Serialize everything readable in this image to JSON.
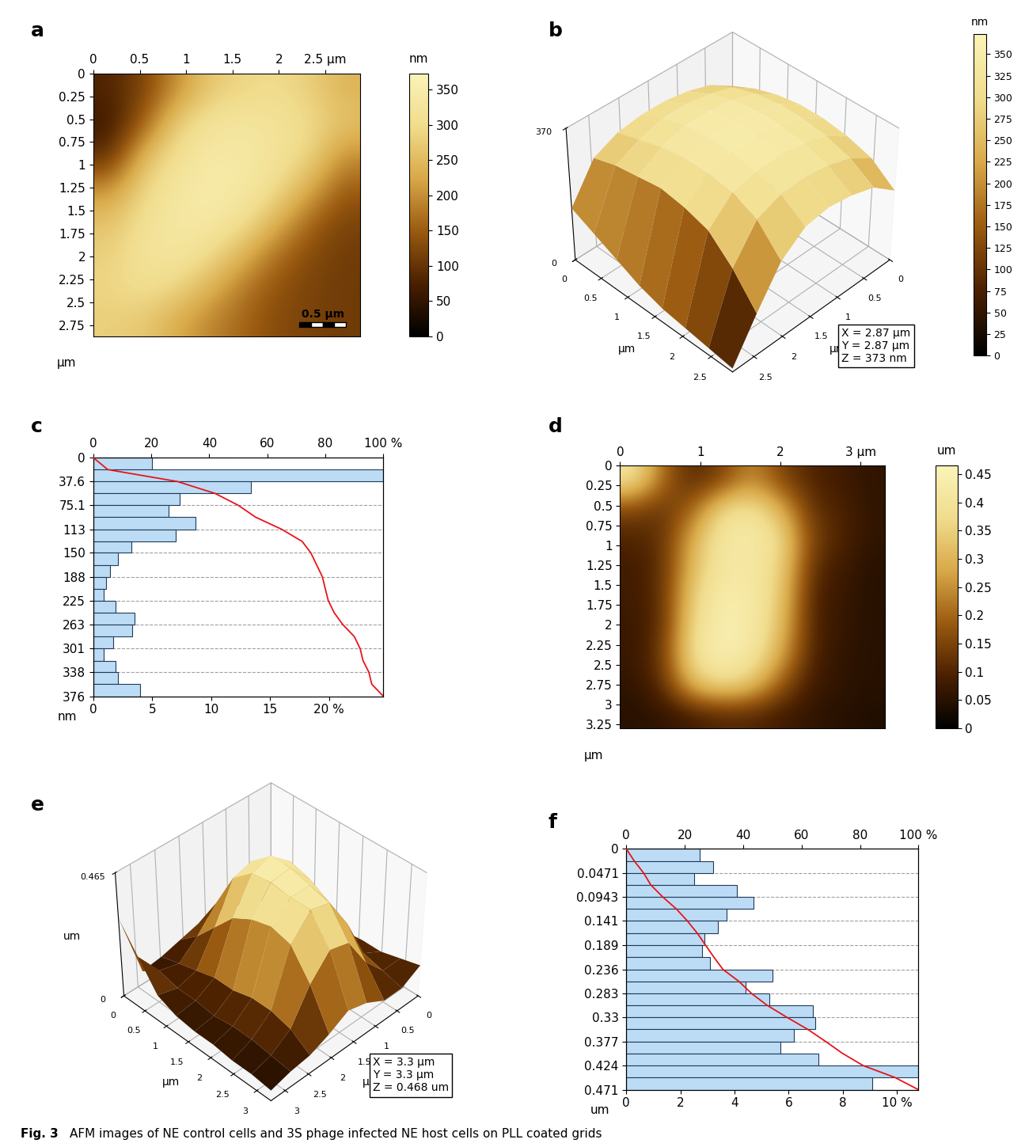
{
  "chart_data": [
    {
      "panel": "a",
      "type": "heatmap",
      "xlim": [
        0,
        2.87
      ],
      "ylim": [
        2.87,
        0
      ],
      "xticks": [
        0,
        0.5,
        1,
        1.5,
        2,
        {
          "value": 2.5,
          "label": "2.5 µm"
        }
      ],
      "yticks": [
        0,
        0.25,
        0.5,
        0.75,
        1,
        1.25,
        1.5,
        1.75,
        2,
        2.25,
        2.5,
        2.75
      ],
      "ylabel": "µm",
      "cells": [
        [
          80,
          120,
          200,
          270,
          290,
          300,
          280,
          240
        ],
        [
          60,
          150,
          280,
          320,
          330,
          320,
          300,
          260
        ],
        [
          90,
          250,
          310,
          340,
          340,
          320,
          290,
          200
        ],
        [
          200,
          290,
          330,
          350,
          340,
          300,
          230,
          150
        ],
        [
          260,
          310,
          340,
          340,
          310,
          240,
          160,
          120
        ],
        [
          280,
          320,
          330,
          300,
          240,
          170,
          130,
          110
        ],
        [
          290,
          310,
          290,
          240,
          180,
          140,
          120,
          110
        ],
        [
          280,
          270,
          230,
          190,
          160,
          130,
          120,
          110
        ]
      ],
      "colorbar": {
        "range": [
          0,
          373
        ],
        "ticks": [
          0,
          50,
          100,
          150,
          200,
          250,
          300,
          350
        ],
        "label": "nm"
      },
      "scale_bar": {
        "length": 0.5,
        "label": "0.5 µm"
      }
    },
    {
      "panel": "b",
      "type": "surface3d",
      "xlim": [
        0,
        2.87
      ],
      "ylim": [
        0,
        2.87
      ],
      "zlim": [
        0,
        370
      ],
      "xticks": [
        0,
        0.5,
        1,
        1.5,
        2,
        2.5
      ],
      "yticks": [
        0,
        0.5,
        1,
        1.5,
        2,
        2.5
      ],
      "zticks": [
        0,
        370
      ],
      "xlabel": "µm",
      "ylabel": "µm",
      "cells": [
        [
          220,
          260,
          280,
          290,
          290,
          280,
          250,
          150
        ],
        [
          250,
          290,
          310,
          320,
          320,
          300,
          270,
          120
        ],
        [
          270,
          310,
          330,
          340,
          340,
          320,
          280,
          90
        ],
        [
          280,
          320,
          340,
          350,
          345,
          330,
          290,
          60
        ],
        [
          280,
          320,
          340,
          350,
          345,
          330,
          280,
          40
        ],
        [
          270,
          310,
          330,
          340,
          335,
          320,
          260,
          30
        ],
        [
          250,
          290,
          310,
          320,
          315,
          290,
          200,
          20
        ],
        [
          200,
          250,
          270,
          280,
          270,
          220,
          120,
          10
        ]
      ],
      "colorbar": {
        "range": [
          0,
          373
        ],
        "ticks": [
          0,
          25,
          50,
          75,
          100,
          125,
          150,
          175,
          200,
          225,
          250,
          275,
          300,
          325,
          350
        ],
        "label": "nm"
      },
      "info": [
        "X = 2.87 µm",
        "Y = 2.87 µm",
        "Z = 373 nm"
      ]
    },
    {
      "panel": "c",
      "type": "histogram",
      "orientation": "horizontal",
      "bins": [
        0,
        18.8,
        37.6,
        56.4,
        75.1,
        93.9,
        113,
        132,
        150,
        169,
        188,
        207,
        225,
        244,
        263,
        282,
        301,
        320,
        338,
        357,
        376
      ],
      "counts": [
        5.0,
        24.6,
        13.4,
        7.3,
        6.4,
        8.7,
        7.0,
        3.2,
        2.1,
        1.4,
        1.1,
        0.9,
        1.9,
        3.5,
        3.3,
        1.7,
        0.9,
        1.9,
        2.1,
        4.0
      ],
      "color": "#bcdcf5",
      "xlim": [
        0,
        24.6
      ],
      "xticks": [
        0,
        5,
        10,
        15,
        {
          "value": 20,
          "label": "20 %"
        }
      ],
      "ylim": [
        376,
        0
      ],
      "yticks": [
        0,
        37.6,
        75.1,
        113,
        150,
        188,
        225,
        263,
        301,
        338,
        376
      ],
      "ylabel": "nm",
      "grid": true,
      "x2lim": [
        0,
        100
      ],
      "x2ticks": [
        0,
        20,
        40,
        60,
        80,
        {
          "value": 100,
          "label": "100 %"
        }
      ],
      "cumulative": {
        "color": "#e8141a",
        "values": [
          0,
          5,
          29,
          42,
          50,
          56,
          65,
          72,
          75,
          77,
          79,
          80,
          81,
          83,
          86,
          90,
          92,
          93,
          95,
          96,
          100
        ]
      }
    },
    {
      "panel": "d",
      "type": "heatmap",
      "xlim": [
        0,
        3.3
      ],
      "ylim": [
        3.3,
        0
      ],
      "xticks": [
        0,
        1,
        2,
        {
          "value": 3,
          "label": "3 µm"
        }
      ],
      "yticks": [
        0,
        0.25,
        0.5,
        0.75,
        1,
        1.25,
        1.5,
        1.75,
        2,
        2.25,
        2.5,
        2.75,
        3,
        3.25
      ],
      "ylabel": "µm",
      "cells": [
        [
          0.4,
          0.2,
          0.1,
          0.15,
          0.25,
          0.15,
          0.1,
          0.08,
          0.06
        ],
        [
          0.15,
          0.12,
          0.2,
          0.38,
          0.4,
          0.3,
          0.12,
          0.1,
          0.06
        ],
        [
          0.1,
          0.12,
          0.3,
          0.42,
          0.43,
          0.38,
          0.15,
          0.1,
          0.06
        ],
        [
          0.08,
          0.12,
          0.32,
          0.42,
          0.42,
          0.36,
          0.12,
          0.08,
          0.05
        ],
        [
          0.08,
          0.12,
          0.36,
          0.44,
          0.43,
          0.34,
          0.1,
          0.07,
          0.05
        ],
        [
          0.07,
          0.12,
          0.38,
          0.45,
          0.43,
          0.32,
          0.1,
          0.07,
          0.05
        ],
        [
          0.07,
          0.14,
          0.4,
          0.45,
          0.42,
          0.28,
          0.1,
          0.06,
          0.05
        ],
        [
          0.06,
          0.12,
          0.32,
          0.38,
          0.33,
          0.18,
          0.08,
          0.06,
          0.05
        ],
        [
          0.05,
          0.06,
          0.08,
          0.1,
          0.1,
          0.08,
          0.06,
          0.05,
          0.04
        ]
      ],
      "colorbar": {
        "range": [
          0,
          0.465
        ],
        "ticks": [
          0,
          0.05,
          0.1,
          0.15,
          0.2,
          0.25,
          0.3,
          0.35,
          0.4,
          0.45
        ],
        "label": "um"
      }
    },
    {
      "panel": "e",
      "type": "surface3d",
      "xlim": [
        0,
        3.3
      ],
      "ylim": [
        0,
        3.3
      ],
      "zlim": [
        0,
        0.465
      ],
      "xticks": [
        0,
        0.5,
        1,
        1.5,
        2,
        2.5,
        3
      ],
      "yticks": [
        0,
        0.5,
        1,
        1.5,
        2,
        2.5,
        3
      ],
      "zticks": [
        0,
        0.465
      ],
      "xlabel": "µm",
      "ylabel": "µm",
      "zlabel": "um",
      "cells": [
        [
          0.05,
          0.06,
          0.08,
          0.1,
          0.1,
          0.08,
          0.06,
          0.05,
          0.3
        ],
        [
          0.06,
          0.1,
          0.14,
          0.2,
          0.22,
          0.14,
          0.08,
          0.1,
          0.2
        ],
        [
          0.06,
          0.14,
          0.3,
          0.38,
          0.36,
          0.22,
          0.1,
          0.08,
          0.1
        ],
        [
          0.07,
          0.16,
          0.38,
          0.44,
          0.42,
          0.3,
          0.12,
          0.08,
          0.07
        ],
        [
          0.07,
          0.15,
          0.36,
          0.44,
          0.43,
          0.34,
          0.12,
          0.07,
          0.06
        ],
        [
          0.08,
          0.13,
          0.32,
          0.42,
          0.42,
          0.36,
          0.14,
          0.08,
          0.06
        ],
        [
          0.08,
          0.12,
          0.28,
          0.4,
          0.42,
          0.34,
          0.14,
          0.08,
          0.05
        ],
        [
          0.1,
          0.1,
          0.18,
          0.3,
          0.32,
          0.24,
          0.12,
          0.07,
          0.05
        ],
        [
          0.12,
          0.08,
          0.08,
          0.12,
          0.14,
          0.1,
          0.07,
          0.06,
          0.04
        ]
      ],
      "info": [
        "X = 3.3 µm",
        "Y = 3.3 µm",
        "Z = 0.468 um"
      ]
    },
    {
      "panel": "f",
      "type": "histogram",
      "orientation": "horizontal",
      "bins": [
        0,
        0.0236,
        0.0471,
        0.0707,
        0.0943,
        0.118,
        0.141,
        0.165,
        0.189,
        0.212,
        0.236,
        0.259,
        0.283,
        0.306,
        0.33,
        0.353,
        0.377,
        0.4,
        0.424,
        0.447,
        0.471
      ],
      "counts": [
        2.7,
        3.2,
        2.5,
        4.1,
        4.7,
        3.7,
        3.4,
        2.9,
        2.8,
        3.1,
        5.4,
        4.4,
        5.3,
        6.9,
        7.0,
        6.2,
        5.7,
        7.1,
        10.8,
        9.1
      ],
      "color": "#bcdcf5",
      "xlim": [
        0,
        10.8
      ],
      "xticks": [
        0,
        2,
        4,
        6,
        8,
        {
          "value": 10,
          "label": "10 %"
        }
      ],
      "ylim": [
        0.471,
        0
      ],
      "yticks": [
        0,
        0.0471,
        0.0943,
        0.141,
        0.189,
        0.236,
        0.283,
        0.33,
        0.377,
        0.424,
        0.471
      ],
      "ylabel": "um",
      "grid": true,
      "x2lim": [
        0,
        100
      ],
      "x2ticks": [
        0,
        20,
        40,
        60,
        80,
        {
          "value": 100,
          "label": "100 %"
        }
      ],
      "cumulative": {
        "color": "#e8141a",
        "values": [
          0,
          2.7,
          5.9,
          8.4,
          12.5,
          17.2,
          20.9,
          24.3,
          27.2,
          30,
          33.1,
          38.5,
          42.9,
          48.2,
          55.1,
          62.1,
          68.3,
          74,
          81.1,
          91.9,
          100
        ]
      }
    }
  ],
  "caption": {
    "label": "Fig. 3",
    "text": "AFM images of NE control cells and 3S phage infected NE host cells on PLL coated grids"
  }
}
